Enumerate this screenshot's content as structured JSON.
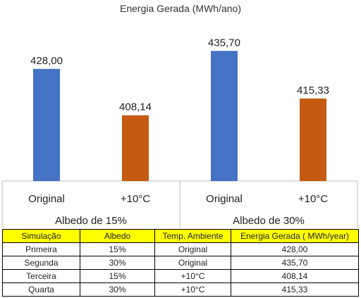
{
  "chart_data": {
    "type": "bar",
    "title": "Energia Gerada (MWh/ano)",
    "groups": [
      {
        "label": "Albedo de 15%",
        "bars": [
          {
            "category": "Original",
            "value": 428.0,
            "label": "428,00",
            "color": "#4472C4"
          },
          {
            "category": "+10°C",
            "value": 408.14,
            "label": "408,14",
            "color": "#C55A11"
          }
        ]
      },
      {
        "label": "Albedo de 30%",
        "bars": [
          {
            "category": "Original",
            "value": 435.7,
            "label": "435,70",
            "color": "#4472C4"
          },
          {
            "category": "+10°C",
            "value": 415.33,
            "label": "415,33",
            "color": "#C55A11"
          }
        ]
      }
    ],
    "ylim": [
      380,
      440
    ],
    "grid": false,
    "legend": "none"
  },
  "table": {
    "headers": [
      "Simulação",
      "Albedo",
      "Temp. Ambiente",
      "Energia Gerada ( MWh/year)"
    ],
    "rows": [
      [
        "Primeira",
        "15%",
        "Original",
        "428,00"
      ],
      [
        "Segunda",
        "30%",
        "Original",
        "435,70"
      ],
      [
        "Terceira",
        "15%",
        "+10°C",
        "408,14"
      ],
      [
        "Quarta",
        "30%",
        "+10°C",
        "415,33"
      ]
    ],
    "header_color": "#FFFF00"
  }
}
